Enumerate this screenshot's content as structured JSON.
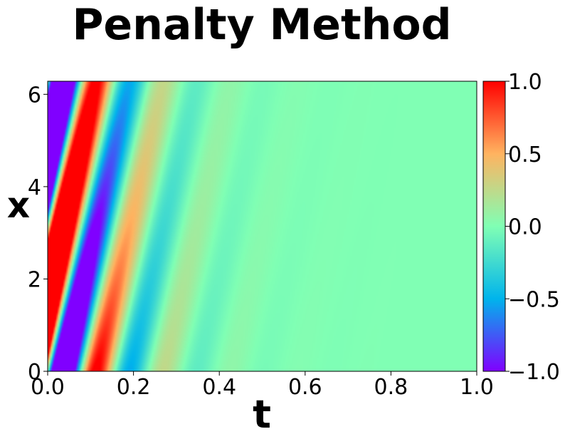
{
  "chart_data": {
    "type": "heatmap",
    "title": "Penalty Method",
    "xlabel": "t",
    "ylabel": "x",
    "xlim": [
      0.0,
      1.0
    ],
    "ylim": [
      0,
      6.283
    ],
    "xticks": [
      {
        "value": 0.0,
        "label": "0.0"
      },
      {
        "value": 0.2,
        "label": "0.2"
      },
      {
        "value": 0.4,
        "label": "0.4"
      },
      {
        "value": 0.6,
        "label": "0.6"
      },
      {
        "value": 0.8,
        "label": "0.8"
      },
      {
        "value": 1.0,
        "label": "1.0"
      }
    ],
    "yticks": [
      {
        "value": 0,
        "label": "0"
      },
      {
        "value": 2,
        "label": "2"
      },
      {
        "value": 4,
        "label": "4"
      },
      {
        "value": 6,
        "label": "6"
      }
    ],
    "colormap": "rainbow",
    "colorbar": {
      "vmin": -1.0,
      "vmax": 1.0,
      "ticks": [
        {
          "value": 1.0,
          "label": "1.0"
        },
        {
          "value": 0.5,
          "label": "0.5"
        },
        {
          "value": 0.0,
          "label": "0.0"
        },
        {
          "value": -0.5,
          "label": "−0.5"
        },
        {
          "value": -1.0,
          "label": "−1.0"
        }
      ]
    },
    "field": {
      "description": "travelling wave u(t,x) damped in t, clipped to [-1,1]",
      "wave_speed": 40,
      "amplitude": 3.0,
      "decay_rate": 9
    },
    "colors": {
      "stops": [
        "#8000ff",
        "#00b4ec",
        "#80ffb4",
        "#ffb360",
        "#ff0000"
      ]
    }
  }
}
